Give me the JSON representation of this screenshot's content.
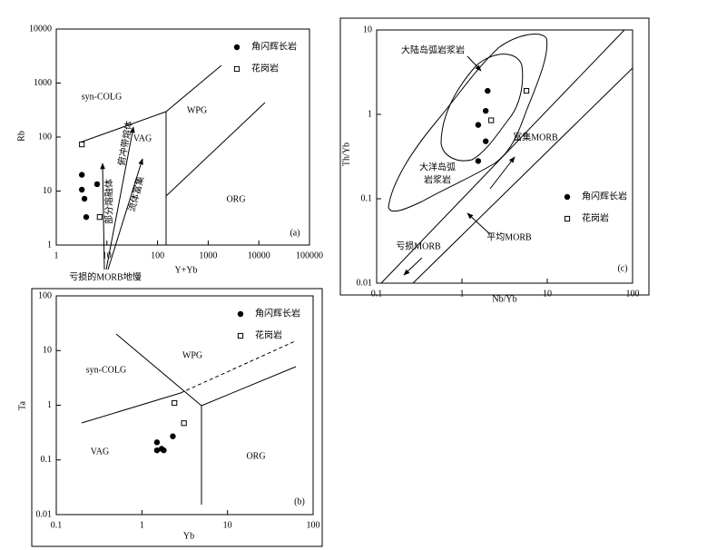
{
  "chart_data": [
    {
      "type": "scatter",
      "x_label": "Y+Yb",
      "y_label": "Rb",
      "panel_label": "(a)",
      "xscale": "log",
      "yscale": "log",
      "xlim": [
        1,
        100000
      ],
      "ylim": [
        1,
        10000
      ],
      "xticks": [
        1,
        10,
        100,
        1000,
        10000,
        100000
      ],
      "yticks": [
        1,
        10,
        100,
        1000,
        10000
      ],
      "legend": "upper right",
      "series": [
        {
          "name": "角闪辉长岩",
          "marker": "circle",
          "color": "#000000",
          "x": [
            3.2,
            3.2,
            3.6,
            3.9,
            6.4
          ],
          "y": [
            20,
            10.6,
            7.2,
            3.3,
            13.4
          ]
        },
        {
          "name": "花岗岩",
          "marker": "square",
          "color": "#000000",
          "x": [
            3.2,
            7.2
          ],
          "y": [
            73,
            3.3
          ]
        }
      ],
      "annotations": [
        "syn-COLG",
        "VAG",
        "WPG",
        "ORG",
        "俯冲带熔体",
        "部分熔融体",
        "流体富集",
        "亏损的MORB地慢"
      ]
    },
    {
      "type": "scatter",
      "x_label": "Yb",
      "y_label": "Ta",
      "panel_label": "(b)",
      "xscale": "log",
      "yscale": "log",
      "xlim": [
        0.1,
        100
      ],
      "ylim": [
        0.01,
        100
      ],
      "xticks": [
        0.1,
        1,
        10,
        100
      ],
      "yticks": [
        0.01,
        0.1,
        1,
        10,
        100
      ],
      "legend": "upper right",
      "series": [
        {
          "name": "角闪辉长岩",
          "marker": "circle",
          "color": "#000000",
          "x": [
            1.5,
            1.5,
            1.7,
            1.8,
            2.3
          ],
          "y": [
            0.21,
            0.15,
            0.16,
            0.15,
            0.27
          ]
        },
        {
          "name": "花岗岩",
          "marker": "square",
          "color": "#000000",
          "x": [
            2.4,
            3.1
          ],
          "y": [
            1.1,
            0.47
          ]
        }
      ],
      "annotations": [
        "syn-COLG",
        "WPG",
        "VAG",
        "ORG"
      ]
    },
    {
      "type": "scatter",
      "x_label": "Nb/Yb",
      "y_label": "Th/Yb",
      "panel_label": "(c)",
      "xscale": "log",
      "yscale": "log",
      "xlim": [
        0.1,
        100
      ],
      "ylim": [
        0.01,
        10
      ],
      "xticks": [
        0.1,
        1,
        10,
        100
      ],
      "yticks": [
        0.01,
        0.1,
        1,
        10
      ],
      "legend": "lower right",
      "series": [
        {
          "name": "角闪辉长岩",
          "marker": "circle",
          "color": "#000000",
          "x": [
            2.0,
            1.9,
            1.55,
            1.9,
            1.55
          ],
          "y": [
            1.9,
            1.1,
            0.75,
            0.48,
            0.28
          ]
        },
        {
          "name": "花岗岩",
          "marker": "square",
          "color": "#000000",
          "x": [
            5.7,
            2.2
          ],
          "y": [
            1.9,
            0.85
          ]
        }
      ],
      "annotations": [
        "大陆岛弧岩浆岩",
        "大洋岛弧",
        "岩浆岩",
        "富集MORB",
        "平均MORB",
        "亏损MORB"
      ]
    }
  ]
}
